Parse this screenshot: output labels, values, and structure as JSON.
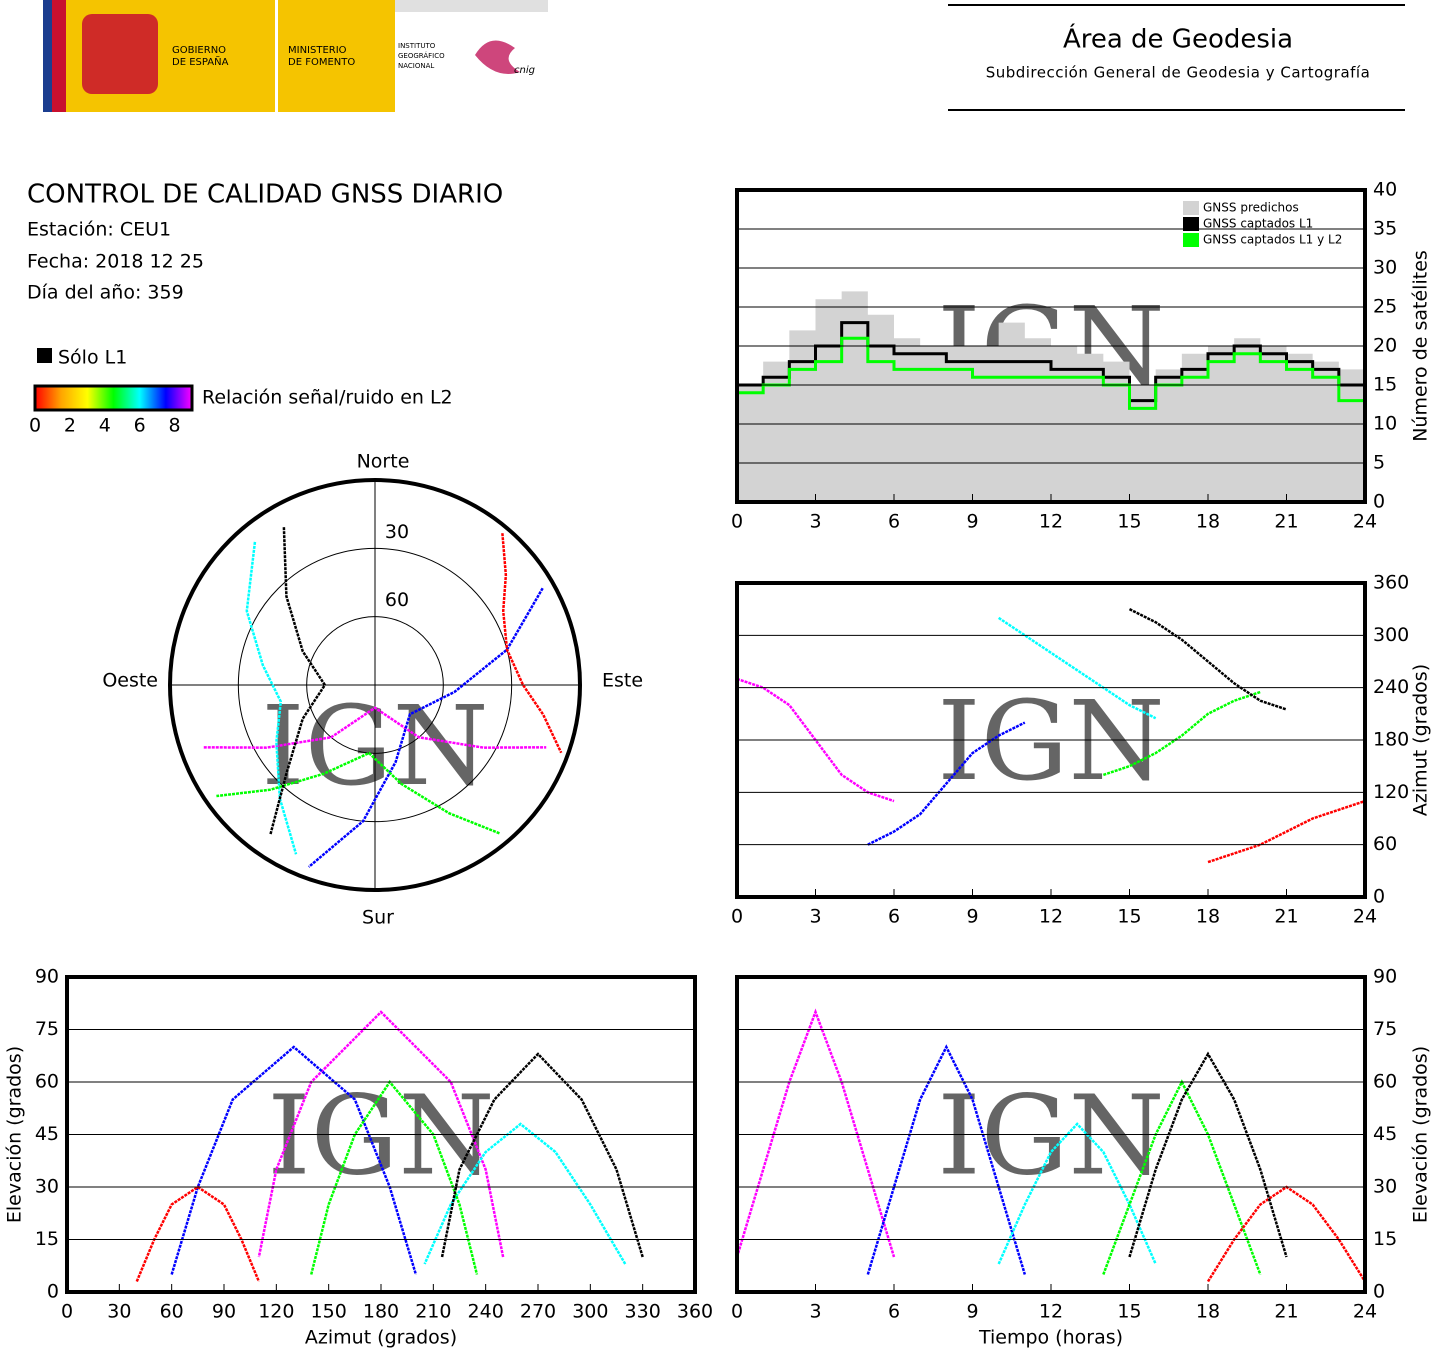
{
  "header": {
    "gobierno": [
      "GOBIERNO",
      "DE ESPAÑA"
    ],
    "ministerio": [
      "MINISTERIO",
      "DE FOMENTO"
    ],
    "instituto": [
      "INSTITUTO",
      "GEOGRÁFICO",
      "NACIONAL"
    ],
    "cnig": "cnig",
    "area": "Área de Geodesia",
    "subdireccion": "Subdirección General de Geodesia y Cartografía"
  },
  "report": {
    "title": "CONTROL DE CALIDAD GNSS DIARIO",
    "station": "Estación: CEU1",
    "date": "Fecha: 2018 12 25",
    "doy": "Día del año: 359"
  },
  "legend": {
    "l1_only": "Sólo L1",
    "snr_label": "Relación señal/ruido en L2",
    "snr_lim": [
      0,
      9
    ],
    "snr_ticks": [
      0,
      2,
      4,
      6,
      8
    ],
    "snr_colors": [
      "#ff0000",
      "#ffa500",
      "#ffff00",
      "#00ff00",
      "#00ffff",
      "#0000ff",
      "#ff00ff"
    ]
  },
  "chart_data": [
    {
      "type": "line",
      "watermark": "IGN",
      "ylabel": "Número de satélites",
      "y_axis_side": "right",
      "grid": true,
      "legend": "upper right",
      "drawstyle": "steps-post",
      "xlim": [
        0,
        24
      ],
      "xticks": [
        0,
        3,
        6,
        9,
        12,
        15,
        18,
        21,
        24
      ],
      "ylim": [
        0,
        40
      ],
      "yticks": [
        0,
        5,
        10,
        15,
        20,
        25,
        30,
        35,
        40
      ],
      "x": [
        0,
        1,
        2,
        3,
        4,
        5,
        6,
        7,
        8,
        9,
        10,
        11,
        12,
        13,
        14,
        15,
        16,
        17,
        18,
        19,
        20,
        21,
        22,
        23,
        24
      ],
      "series": [
        {
          "name": "GNSS predichos",
          "color": "#d3d3d3",
          "fill": true,
          "values": [
            15,
            18,
            22,
            26,
            27,
            24,
            21,
            20,
            20,
            20,
            23,
            21,
            20,
            19,
            18,
            15,
            17,
            19,
            20,
            21,
            20,
            19,
            18,
            17,
            16
          ]
        },
        {
          "name": "GNSS captados L1",
          "color": "#000000",
          "values": [
            15,
            16,
            18,
            20,
            23,
            20,
            19,
            19,
            18,
            18,
            18,
            18,
            17,
            17,
            16,
            13,
            16,
            17,
            19,
            20,
            19,
            18,
            17,
            15,
            14
          ]
        },
        {
          "name": "GNSS captados L1 y L2",
          "color": "#00ff00",
          "values": [
            14,
            15,
            17,
            18,
            21,
            18,
            17,
            17,
            17,
            16,
            16,
            16,
            16,
            16,
            15,
            12,
            15,
            16,
            18,
            19,
            18,
            17,
            16,
            13,
            13
          ]
        }
      ]
    },
    {
      "type": "scatter",
      "watermark": "IGN",
      "ylabel": "Azimut (grados)",
      "y_axis_side": "right",
      "grid": true,
      "xlim": [
        0,
        24
      ],
      "xticks": [
        0,
        3,
        6,
        9,
        12,
        15,
        18,
        21,
        24
      ],
      "ylim": [
        0,
        360
      ],
      "yticks": [
        0,
        60,
        120,
        180,
        240,
        300,
        360
      ],
      "series": [
        {
          "color": "#ff00ff",
          "x": [
            0,
            1,
            2,
            3,
            4,
            5,
            6
          ],
          "values": [
            250,
            240,
            220,
            180,
            140,
            120,
            110
          ]
        },
        {
          "color": "#0000ff",
          "x": [
            5,
            6,
            7,
            8,
            9,
            10,
            11
          ],
          "values": [
            60,
            75,
            95,
            130,
            165,
            185,
            200
          ]
        },
        {
          "color": "#00ffff",
          "x": [
            10,
            11,
            12,
            13,
            14,
            15,
            16
          ],
          "values": [
            320,
            300,
            280,
            260,
            240,
            220,
            205
          ]
        },
        {
          "color": "#00ff00",
          "x": [
            14,
            15,
            16,
            17,
            18,
            19,
            20
          ],
          "values": [
            140,
            150,
            165,
            185,
            210,
            225,
            235
          ]
        },
        {
          "color": "#ff0000",
          "x": [
            18,
            19,
            20,
            21,
            22,
            23,
            24
          ],
          "values": [
            40,
            50,
            60,
            75,
            90,
            100,
            110
          ]
        },
        {
          "color": "#000000",
          "x": [
            15,
            16,
            17,
            18,
            19,
            20,
            21
          ],
          "values": [
            330,
            315,
            295,
            270,
            245,
            225,
            215
          ]
        }
      ]
    },
    {
      "type": "polar",
      "watermark": "IGN",
      "directions": {
        "north": "Norte",
        "south": "Sur",
        "east": "Este",
        "west": "Oeste"
      },
      "rings": [
        30,
        60
      ],
      "series": [
        {
          "color": "#ff00ff",
          "azimuth": [
            250,
            240,
            220,
            180,
            140,
            120,
            110
          ],
          "elevation": [
            10,
            35,
            60,
            80,
            60,
            35,
            10
          ]
        },
        {
          "color": "#0000ff",
          "azimuth": [
            60,
            75,
            95,
            130,
            165,
            185,
            200
          ],
          "elevation": [
            5,
            30,
            55,
            70,
            55,
            30,
            5
          ]
        },
        {
          "color": "#00ffff",
          "azimuth": [
            320,
            300,
            280,
            260,
            240,
            220,
            205
          ],
          "elevation": [
            8,
            25,
            40,
            48,
            40,
            25,
            8
          ]
        },
        {
          "color": "#00ff00",
          "azimuth": [
            140,
            150,
            165,
            185,
            210,
            225,
            235
          ],
          "elevation": [
            5,
            25,
            45,
            60,
            45,
            25,
            5
          ]
        },
        {
          "color": "#ff0000",
          "azimuth": [
            40,
            50,
            60,
            75,
            90,
            100,
            110
          ],
          "elevation": [
            3,
            15,
            25,
            30,
            25,
            15,
            3
          ]
        },
        {
          "color": "#000000",
          "azimuth": [
            330,
            315,
            295,
            270,
            245,
            225,
            215
          ],
          "elevation": [
            10,
            35,
            55,
            68,
            55,
            35,
            10
          ]
        }
      ]
    },
    {
      "type": "scatter",
      "watermark": "IGN",
      "xlabel": "Azimut (grados)",
      "ylabel": "Elevación (grados)",
      "y_axis_side": "left",
      "grid": true,
      "xlim": [
        0,
        360
      ],
      "xticks": [
        0,
        30,
        60,
        90,
        120,
        150,
        180,
        210,
        240,
        270,
        300,
        330,
        360
      ],
      "ylim": [
        0,
        90
      ],
      "yticks": [
        0,
        15,
        30,
        45,
        60,
        75,
        90
      ],
      "series": [
        {
          "color": "#ff00ff",
          "x": [
            250,
            240,
            220,
            180,
            140,
            120,
            110
          ],
          "values": [
            10,
            35,
            60,
            80,
            60,
            35,
            10
          ]
        },
        {
          "color": "#0000ff",
          "x": [
            60,
            75,
            95,
            130,
            165,
            185,
            200
          ],
          "values": [
            5,
            30,
            55,
            70,
            55,
            30,
            5
          ]
        },
        {
          "color": "#00ffff",
          "x": [
            320,
            300,
            280,
            260,
            240,
            220,
            205
          ],
          "values": [
            8,
            25,
            40,
            48,
            40,
            25,
            8
          ]
        },
        {
          "color": "#00ff00",
          "x": [
            140,
            150,
            165,
            185,
            210,
            225,
            235
          ],
          "values": [
            5,
            25,
            45,
            60,
            45,
            25,
            5
          ]
        },
        {
          "color": "#ff0000",
          "x": [
            40,
            50,
            60,
            75,
            90,
            100,
            110
          ],
          "values": [
            3,
            15,
            25,
            30,
            25,
            15,
            3
          ]
        },
        {
          "color": "#000000",
          "x": [
            330,
            315,
            295,
            270,
            245,
            225,
            215
          ],
          "values": [
            10,
            35,
            55,
            68,
            55,
            35,
            10
          ]
        }
      ]
    },
    {
      "type": "scatter",
      "watermark": "IGN",
      "xlabel": "Tiempo (horas)",
      "ylabel": "Elevación (grados)",
      "y_axis_side": "right",
      "grid": true,
      "xlim": [
        0,
        24
      ],
      "xticks": [
        0,
        3,
        6,
        9,
        12,
        15,
        18,
        21,
        24
      ],
      "ylim": [
        0,
        90
      ],
      "yticks": [
        0,
        15,
        30,
        45,
        60,
        75,
        90
      ],
      "series": [
        {
          "color": "#ff00ff",
          "x": [
            0,
            1,
            2,
            3,
            4,
            5,
            6
          ],
          "values": [
            10,
            35,
            60,
            80,
            60,
            35,
            10
          ]
        },
        {
          "color": "#0000ff",
          "x": [
            5,
            6,
            7,
            8,
            9,
            10,
            11
          ],
          "values": [
            5,
            30,
            55,
            70,
            55,
            30,
            5
          ]
        },
        {
          "color": "#00ffff",
          "x": [
            10,
            11,
            12,
            13,
            14,
            15,
            16
          ],
          "values": [
            8,
            25,
            40,
            48,
            40,
            25,
            8
          ]
        },
        {
          "color": "#00ff00",
          "x": [
            14,
            15,
            16,
            17,
            18,
            19,
            20
          ],
          "values": [
            5,
            25,
            45,
            60,
            45,
            25,
            5
          ]
        },
        {
          "color": "#ff0000",
          "x": [
            18,
            19,
            20,
            21,
            22,
            23,
            24
          ],
          "values": [
            3,
            15,
            25,
            30,
            25,
            15,
            3
          ]
        },
        {
          "color": "#000000",
          "x": [
            15,
            16,
            17,
            18,
            19,
            20,
            21
          ],
          "values": [
            10,
            35,
            55,
            68,
            55,
            35,
            10
          ]
        }
      ]
    }
  ]
}
